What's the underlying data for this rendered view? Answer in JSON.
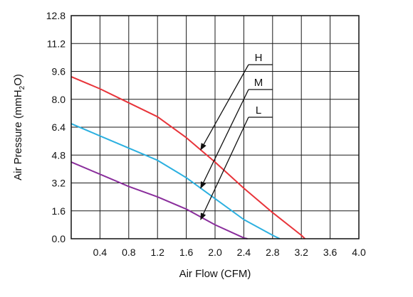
{
  "chart_data": {
    "type": "line",
    "xlabel": "Air Flow (CFM)",
    "ylabel_main": "Air Pressure (mmH",
    "ylabel_sub": "2",
    "ylabel_tail": "O)",
    "xlim": [
      0,
      4.0
    ],
    "ylim": [
      0,
      12.8
    ],
    "grid": true,
    "x_ticks": [
      "0.4",
      "0.8",
      "1.2",
      "1.6",
      "2.0",
      "2.4",
      "2.8",
      "3.2",
      "3.6",
      "4.0"
    ],
    "y_ticks": [
      "0.0",
      "1.6",
      "3.2",
      "4.8",
      "6.4",
      "8.0",
      "9.6",
      "11.2",
      "12.8"
    ],
    "series": [
      {
        "name": "H",
        "color": "#e8343a",
        "points": [
          [
            0,
            9.3
          ],
          [
            0.4,
            8.6
          ],
          [
            0.8,
            7.8
          ],
          [
            1.2,
            7.0
          ],
          [
            1.6,
            5.8
          ],
          [
            2.0,
            4.4
          ],
          [
            2.4,
            2.9
          ],
          [
            2.8,
            1.5
          ],
          [
            3.2,
            0.2
          ],
          [
            3.25,
            0
          ]
        ],
        "arrow_target": [
          1.8,
          5.1
        ]
      },
      {
        "name": "M",
        "color": "#2cb0e0",
        "points": [
          [
            0,
            6.6
          ],
          [
            0.4,
            5.9
          ],
          [
            0.8,
            5.2
          ],
          [
            1.2,
            4.5
          ],
          [
            1.6,
            3.5
          ],
          [
            2.0,
            2.3
          ],
          [
            2.4,
            1.1
          ],
          [
            2.8,
            0.2
          ],
          [
            2.9,
            0
          ]
        ],
        "arrow_target": [
          1.8,
          2.9
        ]
      },
      {
        "name": "L",
        "color": "#8a2e9c",
        "points": [
          [
            0,
            4.4
          ],
          [
            0.4,
            3.7
          ],
          [
            0.8,
            3.0
          ],
          [
            1.2,
            2.4
          ],
          [
            1.6,
            1.7
          ],
          [
            2.0,
            0.8
          ],
          [
            2.4,
            0.05
          ],
          [
            2.45,
            0
          ]
        ],
        "arrow_target": [
          1.8,
          1.1
        ]
      }
    ]
  }
}
